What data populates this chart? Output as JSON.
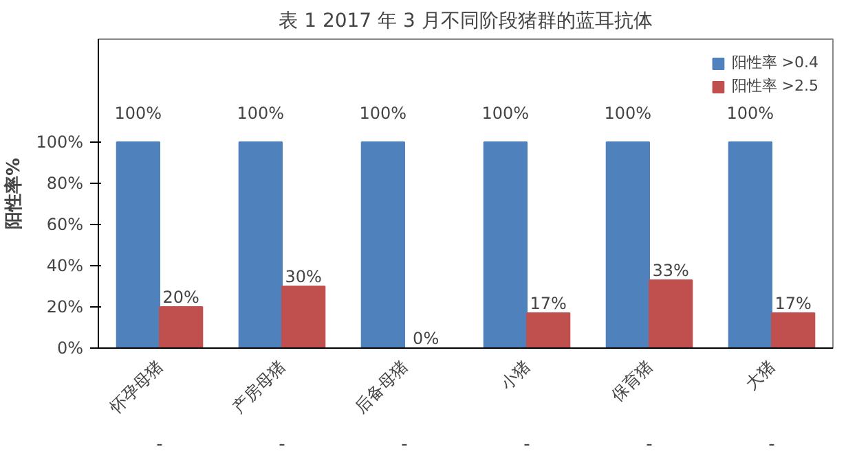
{
  "chart_data": {
    "type": "bar",
    "title": "表 1 2017 年 3 月不同阶段猪群的蓝耳抗体",
    "ylabel": "阳性率%",
    "categories": [
      "怀孕母猪",
      "产房母猪",
      "后备母猪",
      "小猪",
      "保育猪",
      "大猪"
    ],
    "series": [
      {
        "name": "阳性率 >0.4",
        "color": "#4f81bd",
        "values": [
          100,
          100,
          100,
          100,
          100,
          100
        ],
        "value_labels": [
          "100%",
          "100%",
          "100%",
          "100%",
          "100%",
          "100%"
        ]
      },
      {
        "name": "阳性率 >2.5",
        "color": "#c0504d",
        "values": [
          20,
          30,
          0,
          17,
          33,
          17
        ],
        "value_labels": [
          "20%",
          "30%",
          "0%",
          "17%",
          "33%",
          "17%"
        ]
      }
    ],
    "ylim": [
      0,
      150
    ],
    "yticks": [
      {
        "value": 0,
        "label": "0%"
      },
      {
        "value": 20,
        "label": "20%"
      },
      {
        "value": 40,
        "label": "40%"
      },
      {
        "value": 60,
        "label": "60%"
      },
      {
        "value": 80,
        "label": "80%"
      },
      {
        "value": 100,
        "label": "100%"
      }
    ],
    "annotations": [
      "-",
      "-",
      "-",
      "-",
      "-",
      "-"
    ],
    "grid": false,
    "legend": "top right"
  }
}
